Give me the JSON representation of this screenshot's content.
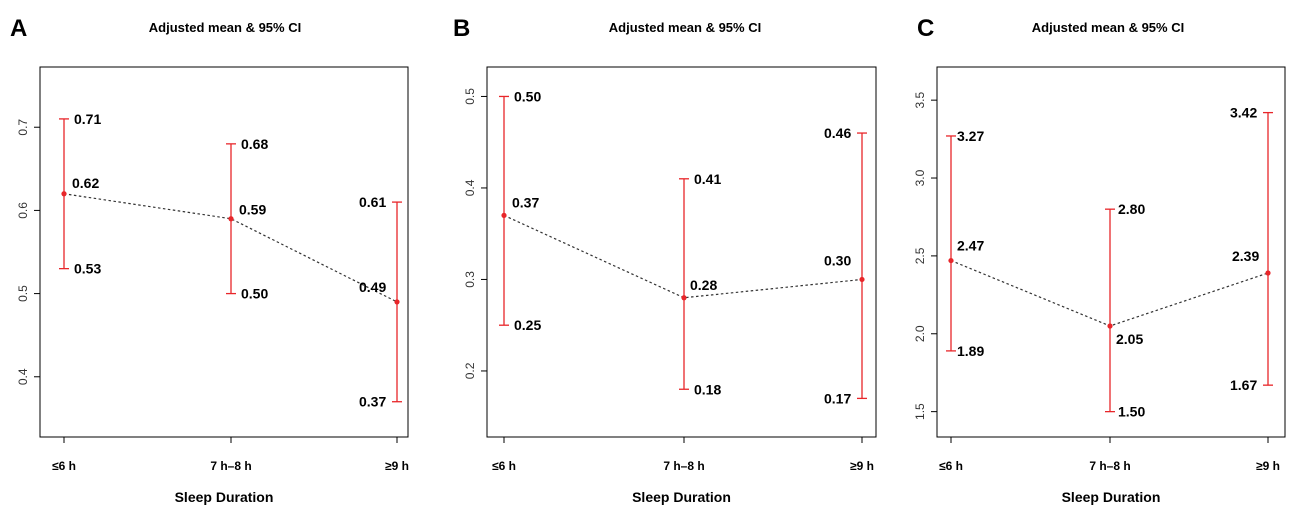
{
  "chart_data": [
    {
      "panel": "A",
      "type": "line",
      "title": "Adjusted mean & 95% CI",
      "xlabel": "Sleep Duration",
      "categories": [
        "≤6 h",
        "7 h–8 h",
        "≥9 h"
      ],
      "ylim": [
        0.33,
        0.77
      ],
      "yticks": [
        "0.4",
        "0.5",
        "0.6",
        "0.7"
      ],
      "series": [
        {
          "mean": [
            0.62,
            0.59,
            0.49
          ],
          "lower": [
            0.53,
            0.5,
            0.37
          ],
          "upper": [
            0.71,
            0.68,
            0.61
          ],
          "mean_labels": [
            "0.62",
            "0.59",
            "0.49"
          ],
          "lower_labels": [
            "0.53",
            "0.50",
            "0.37"
          ],
          "upper_labels": [
            "0.71",
            "0.68",
            "0.61"
          ]
        }
      ]
    },
    {
      "panel": "B",
      "type": "line",
      "title": "Adjusted mean & 95% CI",
      "xlabel": "Sleep Duration",
      "categories": [
        "≤6 h",
        "7 h–8 h",
        "≥9 h"
      ],
      "ylim": [
        0.13,
        0.53
      ],
      "yticks": [
        "0.2",
        "0.3",
        "0.4",
        "0.5"
      ],
      "series": [
        {
          "mean": [
            0.37,
            0.28,
            0.3
          ],
          "lower": [
            0.25,
            0.18,
            0.17
          ],
          "upper": [
            0.5,
            0.41,
            0.46
          ],
          "mean_labels": [
            "0.37",
            "0.28",
            "0.30"
          ],
          "lower_labels": [
            "0.25",
            "0.18",
            "0.17"
          ],
          "upper_labels": [
            "0.50",
            "0.41",
            "0.46"
          ]
        }
      ]
    },
    {
      "panel": "C",
      "type": "line",
      "title": "Adjusted mean & 95% CI",
      "xlabel": "Sleep Duration",
      "categories": [
        "≤6 h",
        "7 h–8 h",
        "≥9 h"
      ],
      "ylim": [
        1.35,
        3.7
      ],
      "yticks": [
        "1.5",
        "2.0",
        "2.5",
        "3.0",
        "3.5"
      ],
      "series": [
        {
          "mean": [
            2.47,
            2.05,
            2.39
          ],
          "lower": [
            1.89,
            1.5,
            1.67
          ],
          "upper": [
            3.27,
            2.8,
            3.42
          ],
          "mean_labels": [
            "2.47",
            "2.05",
            "2.39"
          ],
          "lower_labels": [
            "1.89",
            "1.50",
            "1.67"
          ],
          "upper_labels": [
            "3.27",
            "2.80",
            "3.42"
          ]
        }
      ]
    }
  ],
  "colors": {
    "point": "#e8262a",
    "errorbar": "#e8262a",
    "connector": "#333333"
  }
}
